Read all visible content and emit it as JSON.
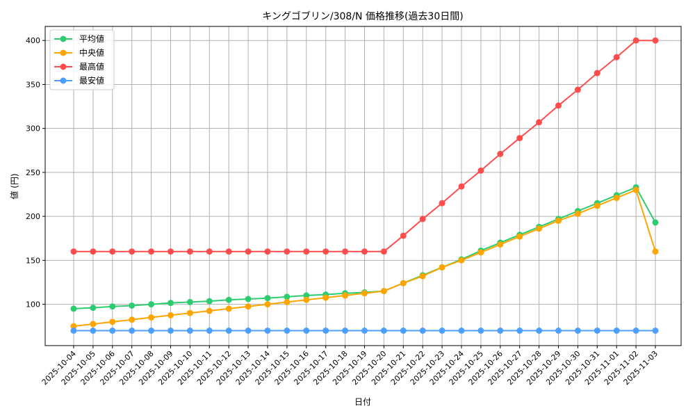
{
  "chart_data": {
    "type": "line",
    "title": "キングゴブリン/308/N 価格推移(過去30日間)",
    "xlabel": "日付",
    "ylabel": "値 (円)",
    "ylim": [
      53,
      416
    ],
    "yticks": [
      100,
      150,
      200,
      250,
      300,
      350,
      400
    ],
    "grid": true,
    "legend_position": "top-left",
    "x": [
      "2025-10-04",
      "2025-10-05",
      "2025-10-06",
      "2025-10-07",
      "2025-10-08",
      "2025-10-09",
      "2025-10-10",
      "2025-10-11",
      "2025-10-12",
      "2025-10-13",
      "2025-10-14",
      "2025-10-15",
      "2025-10-16",
      "2025-10-17",
      "2025-10-18",
      "2025-10-19",
      "2025-10-20",
      "2025-10-21",
      "2025-10-22",
      "2025-10-23",
      "2025-10-24",
      "2025-10-25",
      "2025-10-26",
      "2025-10-27",
      "2025-10-28",
      "2025-10-29",
      "2025-10-30",
      "2025-10-31",
      "2025-11-01",
      "2025-11-02",
      "2025-11-03"
    ],
    "series": [
      {
        "name": "平均値",
        "color": "#2ecc71",
        "values": [
          95,
          96,
          97.5,
          98.5,
          100,
          101.5,
          102.5,
          103.5,
          105,
          106,
          107,
          108.5,
          110,
          111,
          112.5,
          113.5,
          115,
          124,
          133,
          142,
          151,
          161,
          170,
          179,
          188,
          197,
          206,
          215,
          224,
          233,
          193
        ]
      },
      {
        "name": "中央値",
        "color": "#ffa500",
        "values": [
          75,
          77.5,
          80,
          82.5,
          85,
          87.5,
          90,
          92.5,
          95,
          97.5,
          100,
          102.5,
          105,
          107.5,
          110,
          112.5,
          115,
          124,
          132,
          142,
          150,
          159,
          168,
          177,
          186,
          195,
          203,
          212,
          221,
          230,
          160
        ]
      },
      {
        "name": "最高値",
        "color": "#ff4d4d",
        "values": [
          160,
          160,
          160,
          160,
          160,
          160,
          160,
          160,
          160,
          160,
          160,
          160,
          160,
          160,
          160,
          160,
          160,
          178,
          197,
          215,
          234,
          252,
          271,
          289,
          307,
          326,
          344,
          363,
          381,
          400,
          400
        ]
      },
      {
        "name": "最安値",
        "color": "#4d9fff",
        "values": [
          70,
          70,
          70,
          70,
          70,
          70,
          70,
          70,
          70,
          70,
          70,
          70,
          70,
          70,
          70,
          70,
          70,
          70,
          70,
          70,
          70,
          70,
          70,
          70,
          70,
          70,
          70,
          70,
          70,
          70,
          70
        ]
      }
    ]
  }
}
